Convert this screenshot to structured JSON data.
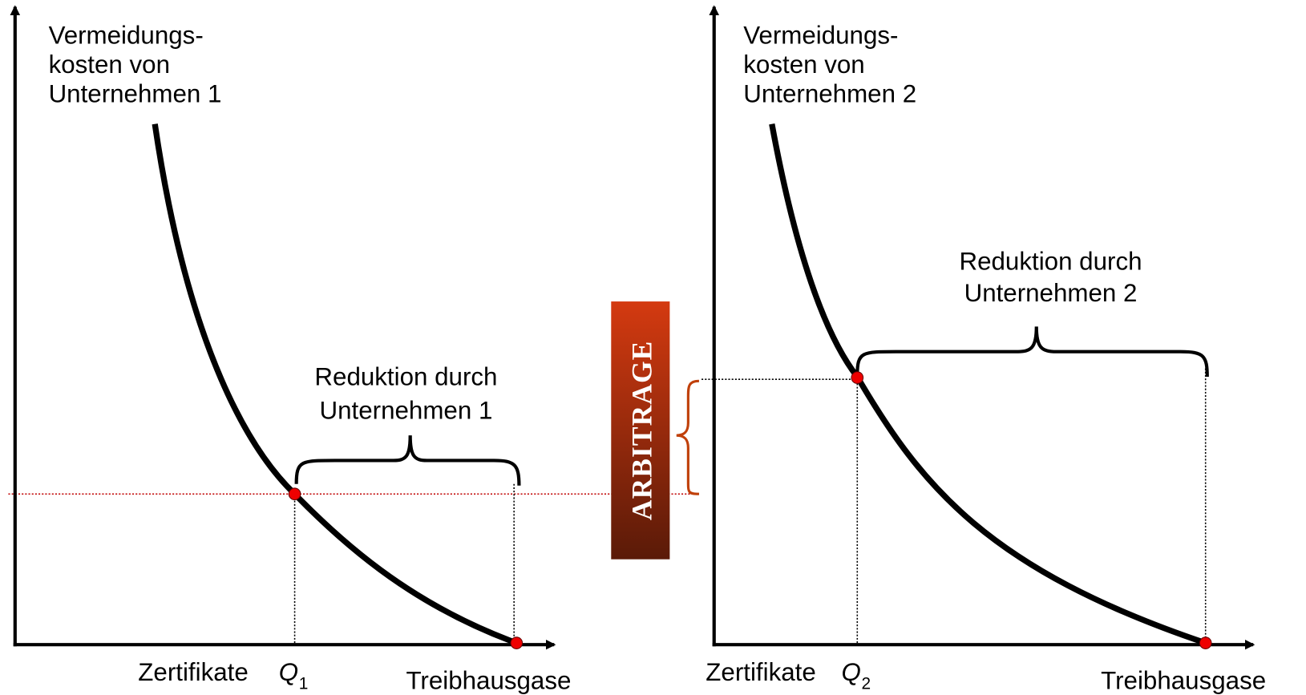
{
  "left": {
    "y_axis_label": [
      "Vermeidungs-",
      "kosten von",
      "Unternehmen 1"
    ],
    "brace_label": [
      "Reduktion durch",
      "Unternehmen 1"
    ],
    "x_label_left": "Zertifikate",
    "quantity_symbol": "Q",
    "quantity_index": "1",
    "x_axis_label": "Treibhausgase"
  },
  "right": {
    "y_axis_label": [
      "Vermeidungs-",
      "kosten von",
      "Unternehmen 2"
    ],
    "brace_label": [
      "Reduktion durch",
      "Unternehmen 2"
    ],
    "x_label_left": "Zertifikate",
    "quantity_symbol": "Q",
    "quantity_index": "2",
    "x_axis_label": "Treibhausgase"
  },
  "arbitrage": "ARBITRAGE"
}
